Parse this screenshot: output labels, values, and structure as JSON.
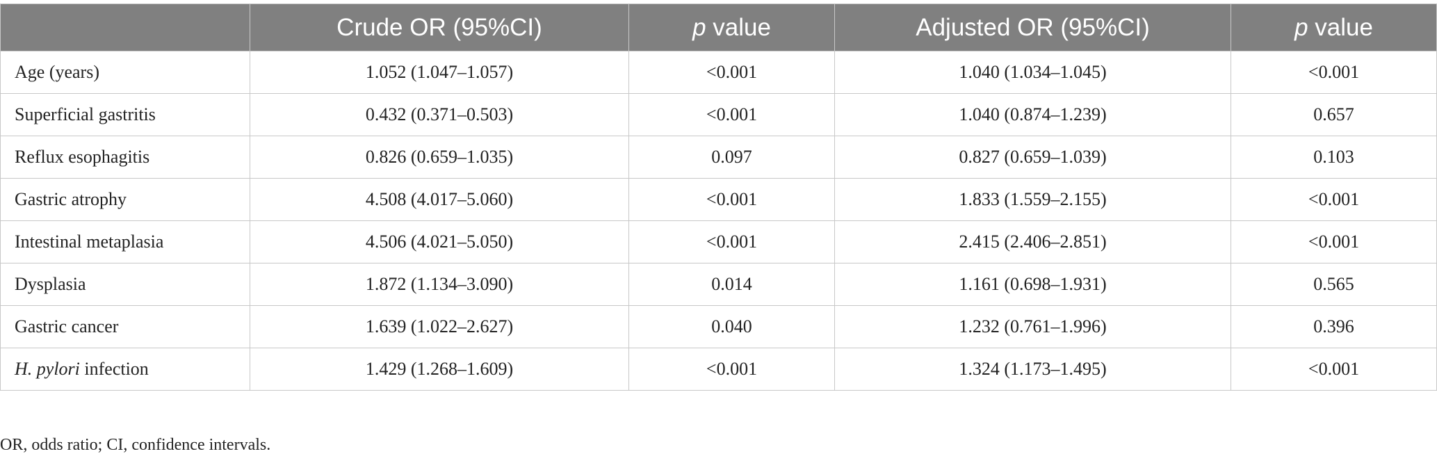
{
  "table": {
    "header": [
      "Crude OR (95%CI)",
      {
        "italic": "p",
        "rest": "value"
      },
      "Adjusted OR (95%CI)",
      {
        "italic": "p",
        "rest": "value"
      }
    ],
    "rows": [
      [
        "Age (years)",
        "1.052 (1.047–1.057)",
        "<0.001",
        "1.040 (1.034–1.045)",
        "<0.001"
      ],
      [
        "Superficial gastritis",
        "0.432 (0.371–0.503)",
        "<0.001",
        "1.040 (0.874–1.239)",
        "0.657"
      ],
      [
        "Reflux esophagitis",
        "0.826 (0.659–1.035)",
        "0.097",
        "0.827 (0.659–1.039)",
        "0.103"
      ],
      [
        "Gastric atrophy",
        "4.508 (4.017–5.060)",
        "<0.001",
        "1.833 (1.559–2.155)",
        "<0.001"
      ],
      [
        "Intestinal metaplasia",
        "4.506 (4.021–5.050)",
        "<0.001",
        "2.415 (2.406–2.851)",
        "<0.001"
      ],
      [
        "Dysplasia",
        "1.872 (1.134–3.090)",
        "0.014",
        "1.161 (0.698–1.931)",
        "0.565"
      ],
      [
        "Gastric cancer",
        "1.639 (1.022–2.627)",
        "0.040",
        "1.232 (0.761–1.996)",
        "0.396"
      ],
      [
        {
          "italic": "H. pylori",
          "rest": "infection"
        },
        "1.429 (1.268–1.609)",
        "<0.001",
        "1.324 (1.173–1.495)",
        "<0.001"
      ]
    ]
  },
  "footnote": "OR, odds ratio; CI, confidence intervals."
}
